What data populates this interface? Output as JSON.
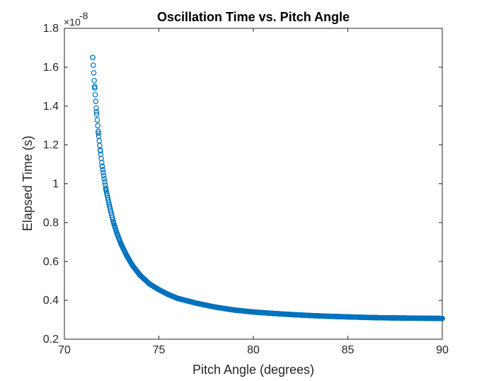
{
  "chart_data": {
    "type": "scatter",
    "title": "Oscillation Time vs. Pitch Angle",
    "xlabel": "Pitch Angle (degrees)",
    "ylabel": "Elapsed Time (s)",
    "xlim": [
      70,
      90
    ],
    "ylim": [
      0.2,
      1.8
    ],
    "y_exponent_base": "×10",
    "y_exponent_power": "-8",
    "xticks": [
      "70",
      "75",
      "80",
      "85",
      "90"
    ],
    "yticks": [
      "0.2",
      "0.4",
      "0.6",
      "0.8",
      "1",
      "1.2",
      "1.4",
      "1.6",
      "1.8"
    ],
    "grid": false,
    "marker": "open-circle",
    "series_color": "#0072BD",
    "x": [
      71.5,
      71.6,
      71.7,
      71.8,
      71.9,
      72.0,
      72.2,
      72.4,
      72.6,
      72.8,
      73.0,
      73.3,
      73.6,
      74.0,
      74.5,
      75.0,
      75.5,
      76.0,
      77.0,
      78.0,
      79.0,
      80.0,
      81.0,
      82.0,
      83.0,
      84.0,
      85.0,
      86.0,
      87.0,
      88.0,
      89.0,
      90.0
    ],
    "y": [
      1.65,
      1.5,
      1.37,
      1.26,
      1.17,
      1.09,
      0.97,
      0.88,
      0.8,
      0.74,
      0.69,
      0.63,
      0.58,
      0.53,
      0.485,
      0.455,
      0.43,
      0.41,
      0.385,
      0.365,
      0.35,
      0.34,
      0.333,
      0.327,
      0.322,
      0.318,
      0.315,
      0.312,
      0.31,
      0.309,
      0.308,
      0.307
    ]
  }
}
